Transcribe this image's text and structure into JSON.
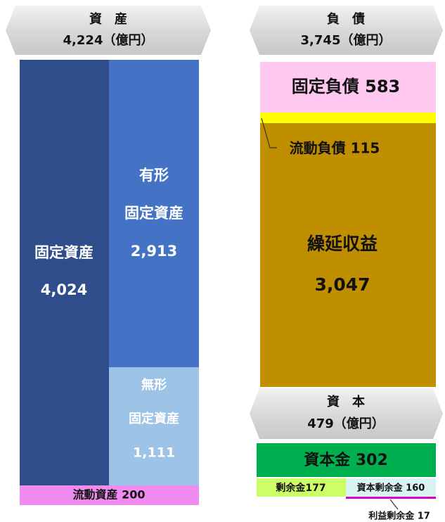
{
  "assets": {
    "title": "資　産",
    "total": "4,224（億円）",
    "fixed": {
      "label": "固定資産",
      "value": "4,024"
    },
    "tangible": {
      "line1": "有形",
      "line2": "固定資産",
      "value": "2,913"
    },
    "intangible": {
      "line1": "無形",
      "line2": "固定資産",
      "value": "1,111"
    },
    "current": "流動資産 200"
  },
  "liabilities": {
    "title": "負　債",
    "total": "3,745（億円）",
    "fixed": "固定負債 583",
    "current": "流動負債 115",
    "deferred": {
      "label": "繰延収益",
      "value": "3,047"
    }
  },
  "equity": {
    "title": "資　本",
    "total": "479（億円）",
    "capital": "資本金 302",
    "surplus": "剰余金177",
    "capital_surplus": "資本剰余金 160",
    "retained": "利益剰余金 17"
  }
}
